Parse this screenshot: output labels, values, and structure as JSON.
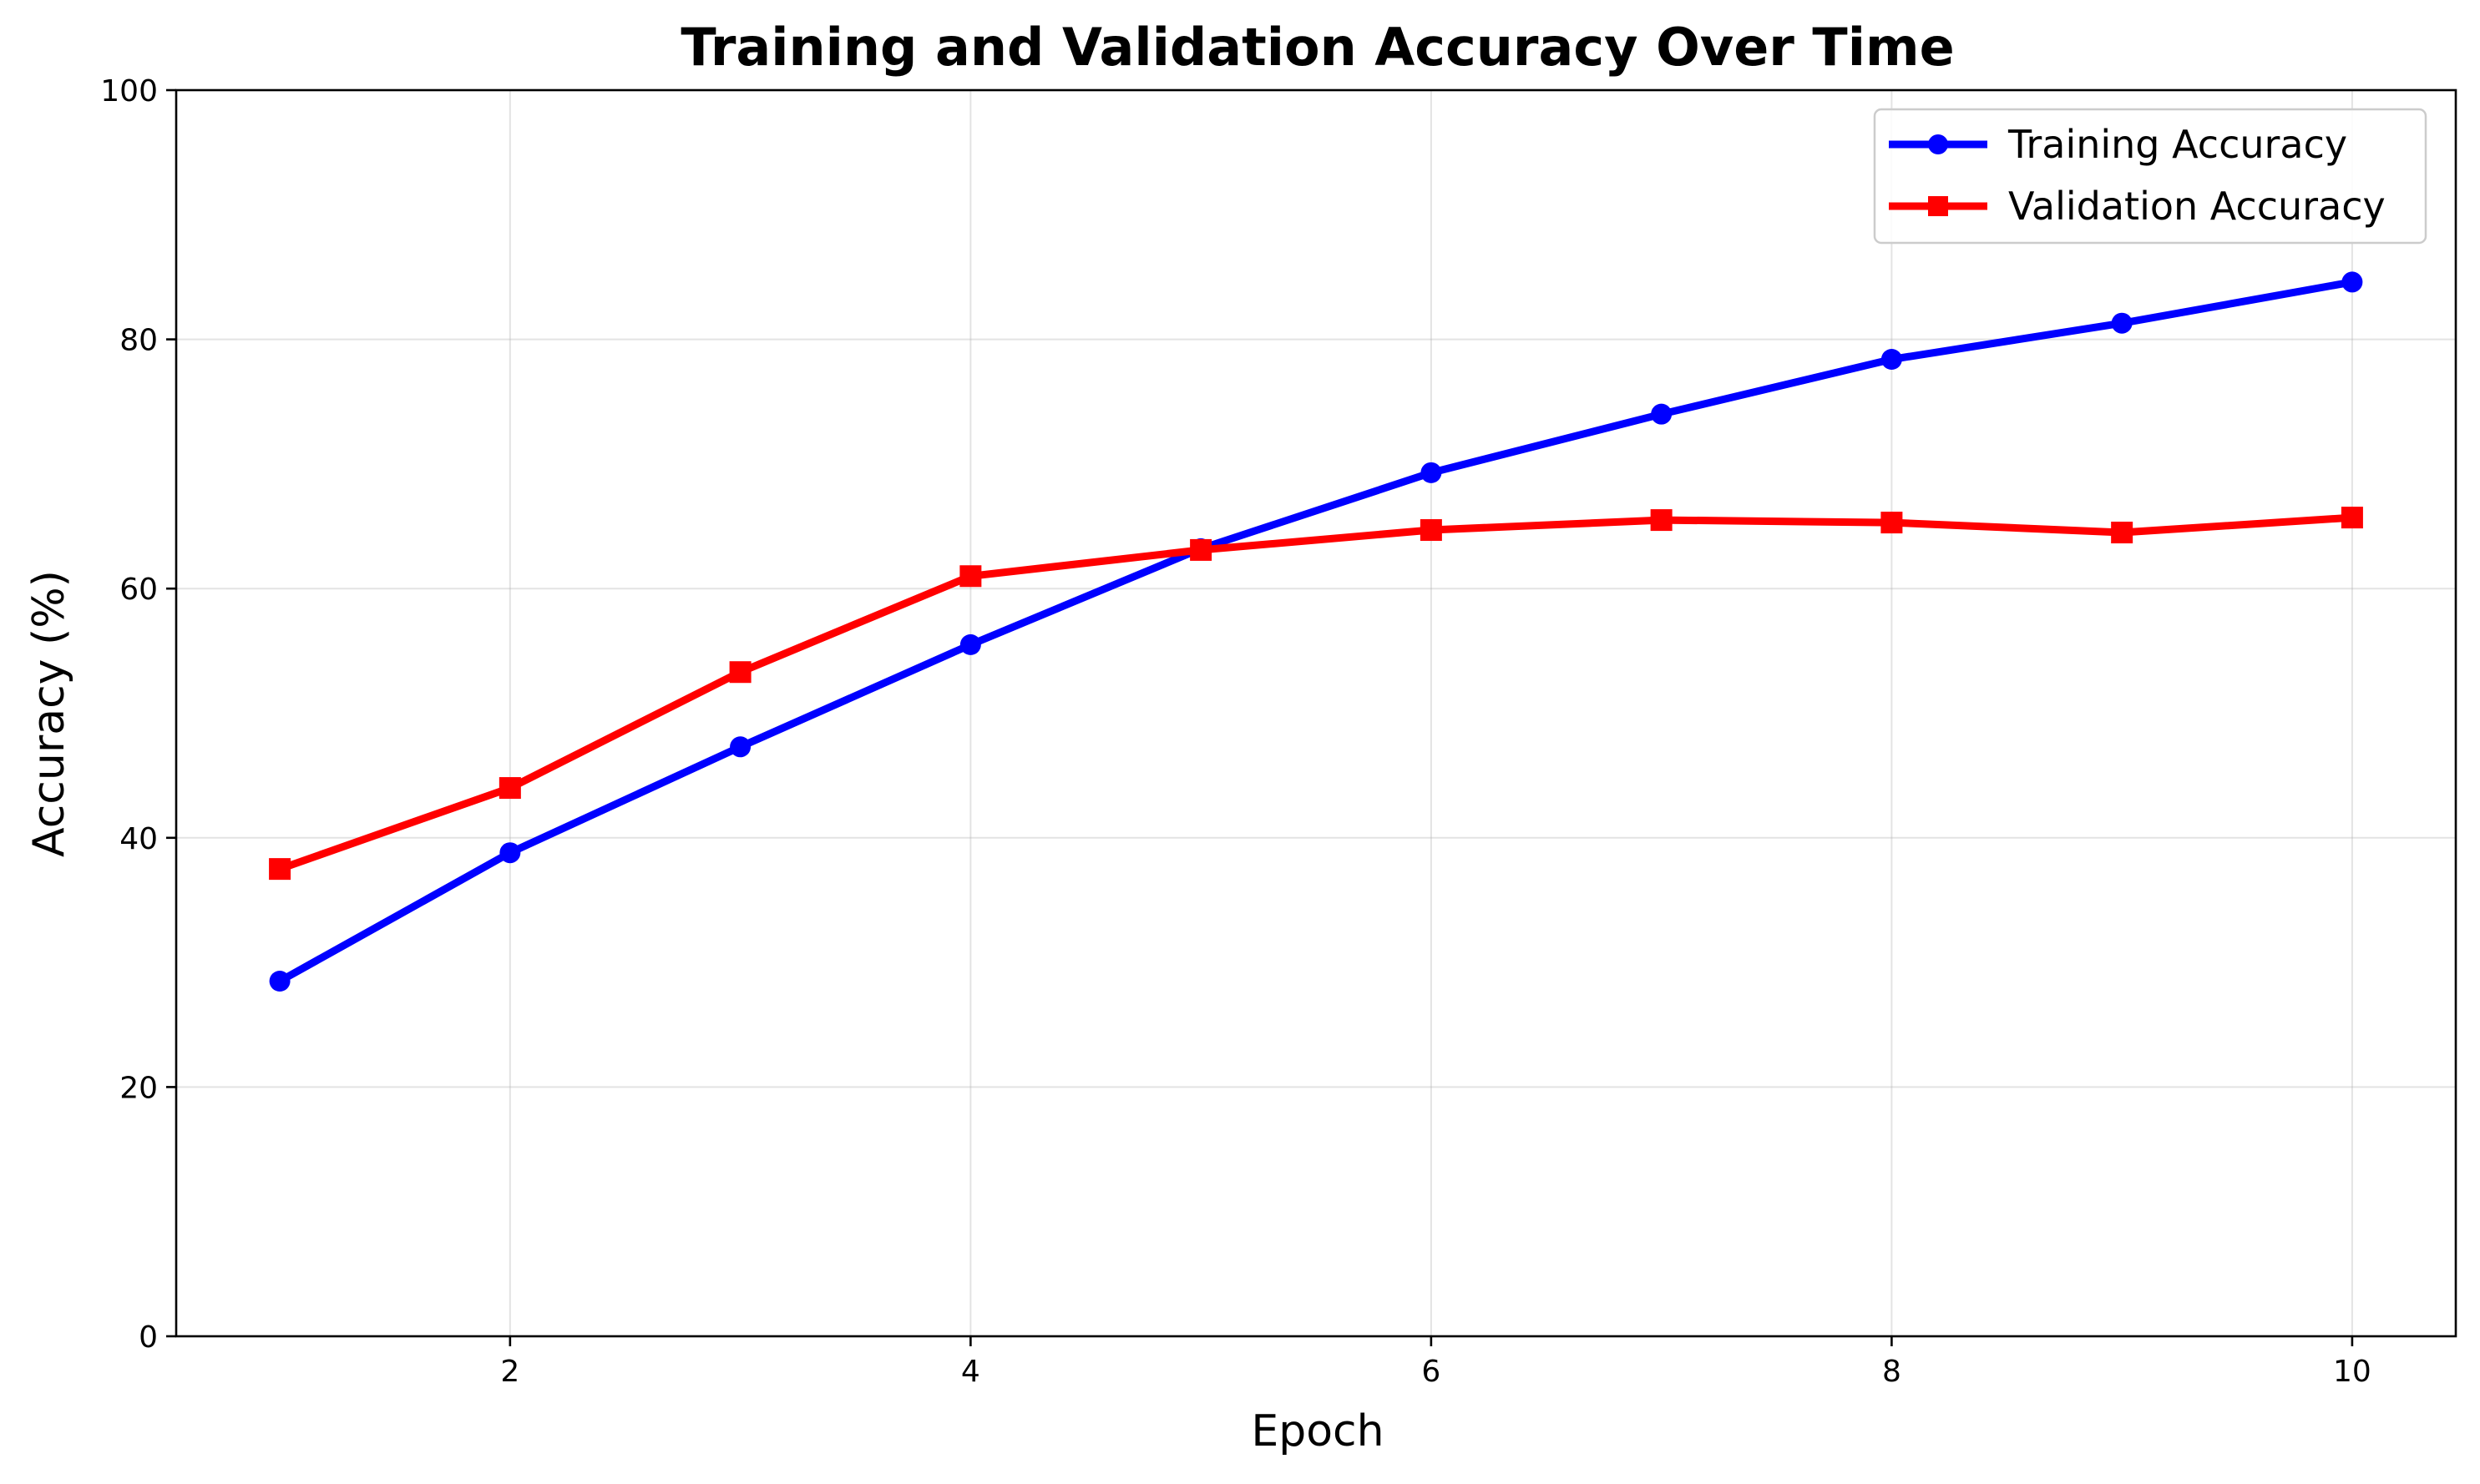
{
  "chart_data": {
    "type": "line",
    "title": "Training and Validation Accuracy Over Time",
    "xlabel": "Epoch",
    "ylabel": "Accuracy (%)",
    "xlim": [
      0.55,
      10.45
    ],
    "ylim": [
      0,
      100
    ],
    "x_ticks": [
      2,
      4,
      6,
      8,
      10
    ],
    "x_tick_labels": [
      "2",
      "4",
      "6",
      "8",
      "10"
    ],
    "y_ticks": [
      0,
      20,
      40,
      60,
      80,
      100
    ],
    "y_tick_labels": [
      "0",
      "20",
      "40",
      "60",
      "80",
      "100"
    ],
    "grid": true,
    "legend_position": "top-right",
    "x": [
      1,
      2,
      3,
      4,
      5,
      6,
      7,
      8,
      9,
      10
    ],
    "series": [
      {
        "name": "Training Accuracy",
        "color": "#0000ff",
        "marker": "circle",
        "values": [
          28.5,
          38.8,
          47.3,
          55.5,
          63.2,
          69.3,
          74.0,
          78.4,
          81.3,
          84.6
        ]
      },
      {
        "name": "Validation Accuracy",
        "color": "#ff0000",
        "marker": "square",
        "values": [
          37.5,
          44.0,
          53.3,
          61.0,
          63.1,
          64.7,
          65.5,
          65.3,
          64.5,
          65.7
        ]
      }
    ]
  }
}
